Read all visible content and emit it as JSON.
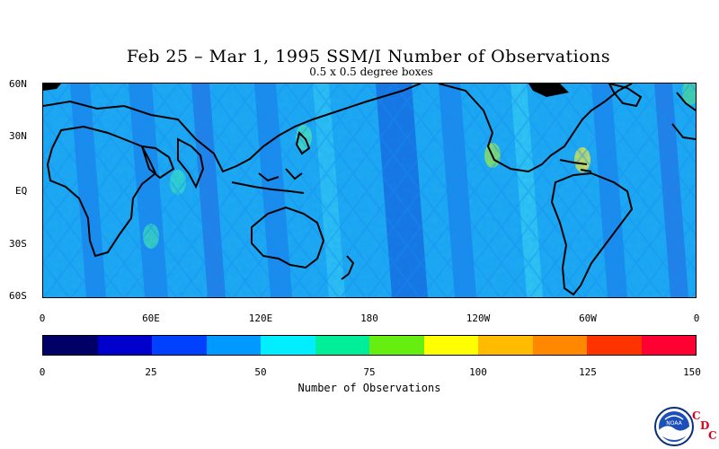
{
  "title": "Feb 25 – Mar 1, 1995 SSM/I Number of Observations",
  "subtitle": "0.5 x 0.5 degree boxes",
  "lat_labels": [
    "60N",
    "30N",
    "EQ",
    "30S",
    "60S"
  ],
  "lon_labels": [
    "0",
    "60E",
    "120E",
    "180",
    "120W",
    "60W",
    "0"
  ],
  "colorbar": {
    "title": "Number of Observations",
    "labels": [
      "0",
      "25",
      "50",
      "75",
      "100",
      "125",
      "150"
    ],
    "colors": [
      "#000066",
      "#0000cc",
      "#0040ff",
      "#0099ff",
      "#00eeff",
      "#00ee99",
      "#66ee11",
      "#ffff00",
      "#ffbb00",
      "#ff8800",
      "#ff3300",
      "#ff0033"
    ]
  },
  "logo": {
    "icon": "noaa-logo-icon",
    "text": "NOAA",
    "letters": [
      "C",
      "D",
      "C"
    ]
  }
}
